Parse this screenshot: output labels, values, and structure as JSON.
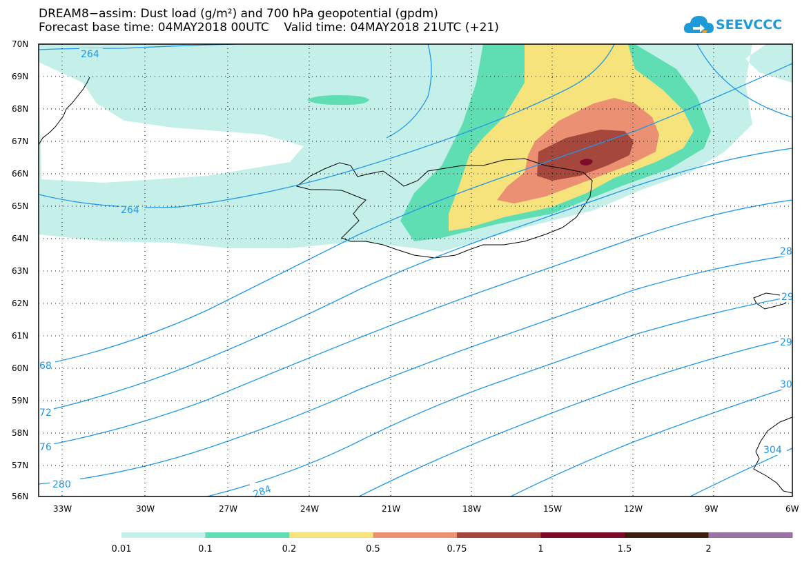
{
  "title": {
    "line1": "DREAM8−assim: Dust load (g/m²) and 700 hPa geopotential (gpdm)",
    "line2": "Forecast base time: 04MAY2018 00UTC    Valid time: 04MAY2018 21UTC (+21)"
  },
  "logo": {
    "text": "SEEVCCC",
    "icon": "cloud-logo-icon",
    "color": "#1d9bd9"
  },
  "axes": {
    "lat_labels": [
      "70N",
      "69N",
      "68N",
      "67N",
      "66N",
      "65N",
      "64N",
      "63N",
      "62N",
      "61N",
      "60N",
      "59N",
      "58N",
      "57N",
      "56N"
    ],
    "lon_labels": [
      "33W",
      "30W",
      "27W",
      "24W",
      "21W",
      "18W",
      "15W",
      "12W",
      "9W",
      "6W"
    ]
  },
  "contour_labels": [
    "264",
    "264",
    "68",
    "72",
    "76",
    "280",
    "284",
    "28",
    "29",
    "29",
    "30",
    "304"
  ],
  "colorbar": {
    "thresholds": [
      "0.01",
      "0.1",
      "0.2",
      "0.5",
      "0.75",
      "1",
      "1.5",
      "2"
    ],
    "colors": [
      "#c5f0ea",
      "#5fdeb3",
      "#f6e37c",
      "#eb9072",
      "#a5473d",
      "#7e0b2a",
      "#3d1f10",
      "#9972a6"
    ]
  },
  "colors": {
    "contour": "#1f97e6",
    "coast": "#000000"
  }
}
